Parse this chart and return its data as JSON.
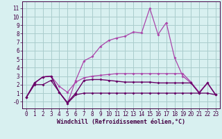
{
  "xlabel": "Windchill (Refroidissement éolien,°C)",
  "x": [
    0,
    1,
    2,
    3,
    4,
    5,
    6,
    7,
    8,
    9,
    10,
    11,
    12,
    13,
    14,
    15,
    16,
    17,
    18,
    19,
    20,
    21,
    22,
    23
  ],
  "line1": [
    0.5,
    2.2,
    2.9,
    3.0,
    1.1,
    -0.2,
    2.5,
    4.8,
    5.3,
    6.5,
    7.2,
    7.5,
    7.7,
    8.2,
    8.1,
    11.0,
    7.9,
    9.3,
    5.2,
    3.0,
    2.2,
    1.1,
    2.2,
    0.8
  ],
  "line2": [
    0.5,
    2.2,
    2.9,
    3.0,
    1.8,
    1.1,
    2.3,
    2.8,
    3.0,
    3.1,
    3.2,
    3.3,
    3.3,
    3.3,
    3.3,
    3.3,
    3.3,
    3.3,
    3.3,
    3.3,
    2.3,
    1.1,
    2.2,
    0.8
  ],
  "line3": [
    0.5,
    2.2,
    2.9,
    3.0,
    1.1,
    -0.1,
    1.0,
    2.5,
    2.6,
    2.6,
    2.5,
    2.4,
    2.3,
    2.3,
    2.3,
    2.3,
    2.2,
    2.2,
    2.2,
    2.2,
    2.2,
    1.0,
    2.2,
    0.8
  ],
  "line4": [
    0.5,
    2.0,
    2.0,
    2.5,
    1.1,
    -0.2,
    0.8,
    1.0,
    1.0,
    1.0,
    1.0,
    1.0,
    1.0,
    1.0,
    1.0,
    1.0,
    1.0,
    1.0,
    1.0,
    1.0,
    1.0,
    1.0,
    1.0,
    0.8
  ],
  "line_color1": "#aa44aa",
  "line_color2": "#aa44aa",
  "line_color3": "#660066",
  "line_color4": "#660066",
  "bg_color": "#d8f0f0",
  "grid_color": "#aacccc",
  "ylim": [
    -0.8,
    11.8
  ],
  "yticks": [
    0,
    1,
    2,
    3,
    4,
    5,
    6,
    7,
    8,
    9,
    10,
    11
  ],
  "ytick_labels": [
    "-0",
    "1",
    "2",
    "3",
    "4",
    "5",
    "6",
    "7",
    "8",
    "9",
    "10",
    "11"
  ],
  "tick_fontsize": 5.5,
  "xlabel_fontsize": 6.0
}
